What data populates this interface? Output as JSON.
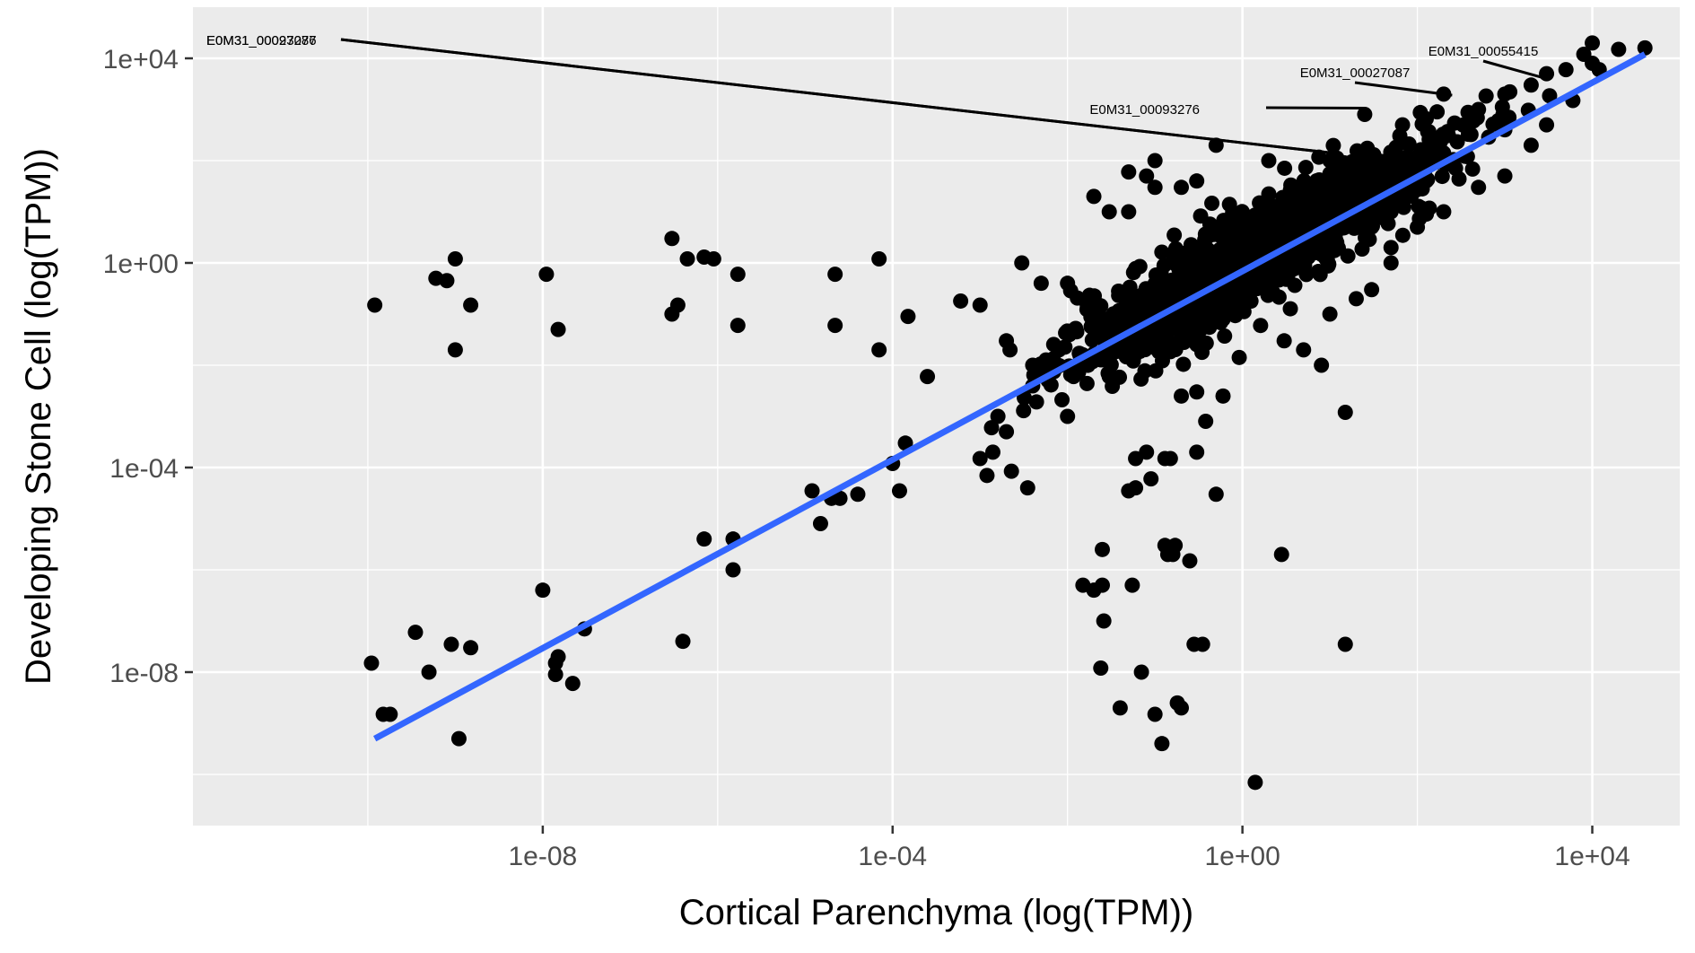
{
  "chart_data": {
    "type": "scatter",
    "title": "",
    "xlabel": "Cortical Parenchyma (log(TPM))",
    "ylabel": "Developing Stone Cell (log(TPM))",
    "x_scale": "log10",
    "y_scale": "log10",
    "xlim": [
      1e-12,
      100000.0
    ],
    "ylim": [
      1e-11,
      100000.0
    ],
    "x_ticks": [
      {
        "value": 1e-08,
        "label": "1e-08"
      },
      {
        "value": 0.0001,
        "label": "1e-04"
      },
      {
        "value": 1,
        "label": "1e+00"
      },
      {
        "value": 10000.0,
        "label": "1e+04"
      }
    ],
    "y_ticks": [
      {
        "value": 10000.0,
        "label": "1e+04"
      },
      {
        "value": 1,
        "label": "1e+00"
      },
      {
        "value": 0.0001,
        "label": "1e-04"
      },
      {
        "value": 1e-08,
        "label": "1e-08"
      }
    ],
    "grid": true,
    "legend": "none",
    "colors": {
      "panel": "#EBEBEB",
      "grid": "#FFFFFF",
      "points": "#000000",
      "fit": "#3366FF"
    },
    "trend_line": {
      "from": [
        1.2e-10,
        5e-10
      ],
      "to": [
        40000.0,
        12000.0
      ]
    },
    "annotations": [
      {
        "label": "E0M31_00093276",
        "x": 25.0,
        "y": 1060.0
      },
      {
        "label": "E0M31_00027087",
        "x": 250.0,
        "y": 1900.0
      },
      {
        "label": "E0M31_00055415",
        "x": 3000.0,
        "y": 4000.0
      },
      {
        "label": "E0M31_00027087",
        "x": 11.0,
        "y": 140.0
      },
      {
        "label": "E0M31_00093276",
        "x": 11.0,
        "y": 140.0
      }
    ],
    "points": [
      [
        1.2e-10,
        0.15
      ],
      [
        1.1e-10,
        1.5e-08
      ],
      [
        1.5e-10,
        1.5e-09
      ],
      [
        1.8e-10,
        1.5e-09
      ],
      [
        3.5e-10,
        6e-08
      ],
      [
        5e-10,
        1e-08
      ],
      [
        6e-10,
        0.5
      ],
      [
        8e-10,
        0.45
      ],
      [
        9e-10,
        3.5e-08
      ],
      [
        1e-09,
        0.02
      ],
      [
        1e-09,
        1.2
      ],
      [
        1.1e-09,
        5e-10
      ],
      [
        1.5e-09,
        0.15
      ],
      [
        1.5e-09,
        3e-08
      ],
      [
        1e-08,
        4e-07
      ],
      [
        1.1e-08,
        0.6
      ],
      [
        1.5e-08,
        0.05
      ],
      [
        1.4e-08,
        1.5e-08
      ],
      [
        1.4e-08,
        9e-09
      ],
      [
        1.5e-08,
        2e-08
      ],
      [
        2.2e-08,
        6e-09
      ],
      [
        3e-08,
        7e-08
      ],
      [
        3e-07,
        3
      ],
      [
        3e-07,
        0.1
      ],
      [
        3.5e-07,
        0.15
      ],
      [
        4e-07,
        4e-08
      ],
      [
        4.5e-07,
        1.2
      ],
      [
        7e-07,
        1.3
      ],
      [
        7e-07,
        4e-06
      ],
      [
        9e-07,
        1.2
      ],
      [
        1.5e-06,
        1e-06
      ],
      [
        1.5e-06,
        4e-06
      ],
      [
        1.7e-06,
        0.06
      ],
      [
        1.7e-06,
        0.6
      ],
      [
        1.2e-05,
        3.5e-05
      ],
      [
        1.5e-05,
        8e-06
      ],
      [
        2e-05,
        2.5e-05
      ],
      [
        2.2e-05,
        0.06
      ],
      [
        2.2e-05,
        0.6
      ],
      [
        2.5e-05,
        2.5e-05
      ],
      [
        4e-05,
        3e-05
      ],
      [
        7e-05,
        1.2
      ],
      [
        7e-05,
        0.02
      ],
      [
        0.0001,
        0.00012
      ],
      [
        0.00012,
        3.5e-05
      ],
      [
        0.00014,
        0.0003
      ],
      [
        0.00015,
        0.09
      ],
      [
        0.00025,
        0.006
      ],
      [
        0.0006,
        0.18
      ],
      [
        0.001,
        0.00015
      ],
      [
        0.0012,
        7e-05
      ],
      [
        0.0014,
        0.0002
      ],
      [
        0.0016,
        0.001
      ],
      [
        0.002,
        0.0005
      ],
      [
        0.0022,
        0.02
      ],
      [
        0.0035,
        4e-05
      ],
      [
        0.01,
        0.001
      ],
      [
        0.015,
        5e-07
      ],
      [
        0.02,
        4e-07
      ],
      [
        0.025,
        2.5e-06
      ],
      [
        0.025,
        5e-07
      ],
      [
        0.026,
        1e-07
      ],
      [
        0.024,
        1.2e-08
      ],
      [
        0.04,
        2e-09
      ],
      [
        0.05,
        3.5e-05
      ],
      [
        0.055,
        5e-07
      ],
      [
        0.06,
        4e-05
      ],
      [
        0.06,
        0.00015
      ],
      [
        0.07,
        1e-08
      ],
      [
        0.08,
        0.0002
      ],
      [
        0.09,
        6e-05
      ],
      [
        0.1,
        1.5e-09
      ],
      [
        0.12,
        4e-10
      ],
      [
        0.13,
        3e-06
      ],
      [
        0.13,
        0.00015
      ],
      [
        0.14,
        2e-06
      ],
      [
        0.15,
        0.00015
      ],
      [
        0.16,
        2e-06
      ],
      [
        0.17,
        3e-06
      ],
      [
        0.18,
        2.5e-09
      ],
      [
        0.2,
        2e-09
      ],
      [
        0.25,
        1.5e-06
      ],
      [
        0.28,
        3.5e-08
      ],
      [
        0.3,
        0.0002
      ],
      [
        0.35,
        3.5e-08
      ],
      [
        0.38,
        0.0008
      ],
      [
        0.5,
        3e-05
      ],
      [
        0.6,
        0.0025
      ],
      [
        2.8,
        2e-06
      ],
      [
        0.3,
        0.003
      ],
      [
        0.2,
        0.0025
      ],
      [
        15.0,
        0.0012
      ],
      [
        15.0,
        3.5e-08
      ],
      [
        1.4,
        7e-11
      ],
      [
        2,
        100.0
      ],
      [
        10.0,
        100.0
      ],
      [
        25.0,
        800.0
      ],
      [
        200.0,
        2000.0
      ],
      [
        500.0,
        1000.0
      ],
      [
        1000.0,
        2000.0
      ],
      [
        2000.0,
        3000.0
      ],
      [
        3000.0,
        5000.0
      ],
      [
        5000.0,
        6000.0
      ],
      [
        8000.0,
        12000.0
      ],
      [
        10000.0,
        8000.0
      ],
      [
        12000.0,
        6000.0
      ],
      [
        20000.0,
        15000.0
      ],
      [
        40000.0,
        16000.0
      ],
      [
        10000.0,
        20000.0
      ],
      [
        6000.0,
        1500.0
      ],
      [
        2000.0,
        200.0
      ],
      [
        3000.0,
        500.0
      ],
      [
        1000.0,
        400.0
      ],
      [
        50.0,
        10.0
      ],
      [
        100.0,
        30.0
      ],
      [
        200.0,
        10.0
      ],
      [
        500.0,
        30.0
      ],
      [
        1000.0,
        50.0
      ],
      [
        30.0,
        5
      ],
      [
        100.0,
        5
      ],
      [
        50.0,
        1
      ],
      [
        10.0,
        0.1
      ],
      [
        50.0,
        2
      ],
      [
        30.0,
        0.3
      ],
      [
        20.0,
        0.2
      ],
      [
        8,
        0.01
      ],
      [
        5,
        0.02
      ],
      [
        3,
        0.03
      ],
      [
        0.04,
        0.05
      ],
      [
        0.03,
        0.006
      ],
      [
        0.008,
        0.02
      ],
      [
        0.005,
        0.4
      ],
      [
        0.003,
        1
      ],
      [
        0.001,
        0.15
      ],
      [
        0.002,
        0.03
      ],
      [
        0.004,
        0.01
      ],
      [
        0.006,
        0.005
      ],
      [
        0.01,
        0.4
      ],
      [
        0.02,
        20.0
      ],
      [
        0.03,
        10.0
      ],
      [
        0.05,
        60.0
      ],
      [
        0.08,
        50.0
      ],
      [
        0.1,
        100.0
      ],
      [
        0.5,
        200.0
      ],
      [
        0.2,
        30.0
      ],
      [
        0.3,
        40.0
      ],
      [
        0.1,
        30.0
      ],
      [
        0.05,
        10.0
      ]
    ],
    "cluster": {
      "x_center_log10": 0.2,
      "y_center_log10": 0.2,
      "count": 1500
    }
  }
}
